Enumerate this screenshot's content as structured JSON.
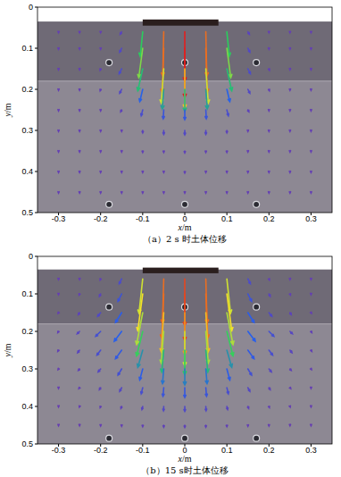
{
  "chart_data": [
    {
      "type": "vector_field",
      "title": "（a）2 s 时土体位移",
      "x_label": "x/m",
      "y_label": "y/m",
      "xlim": [
        -0.35,
        0.35
      ],
      "ylim": [
        0,
        0.5
      ],
      "xticks": [
        -0.3,
        -0.2,
        -0.1,
        0,
        0.1,
        0.2,
        0.3
      ],
      "yticks": [
        0,
        0.1,
        0.2,
        0.3,
        0.4,
        0.5
      ],
      "x": [
        -0.3,
        -0.25,
        -0.2,
        -0.15,
        -0.1,
        -0.05,
        0,
        0.05,
        0.1,
        0.15,
        0.2,
        0.25,
        0.3
      ],
      "y": [
        0.06,
        0.1,
        0.15,
        0.2,
        0.25,
        0.3,
        0.35,
        0.4,
        0.45
      ],
      "u": [
        [
          0,
          0,
          0,
          -0.3,
          -0.5,
          -0.2,
          0,
          0.2,
          0.5,
          0.3,
          0,
          0,
          0
        ],
        [
          0,
          0,
          0,
          -0.4,
          -0.8,
          -0.3,
          0,
          0.3,
          0.8,
          0.4,
          0,
          0,
          0
        ],
        [
          0,
          0,
          -0.1,
          -0.5,
          -1,
          -0.5,
          0,
          0.5,
          1,
          0.5,
          0.1,
          0,
          0
        ],
        [
          0,
          0,
          -0.1,
          -0.4,
          -0.6,
          -0.3,
          0,
          0.3,
          0.6,
          0.4,
          0.1,
          0,
          0
        ],
        [
          0,
          0,
          0,
          -0.2,
          -0.3,
          -0.1,
          0,
          0.1,
          0.3,
          0.2,
          0,
          0,
          0
        ],
        [
          0,
          0,
          0,
          0,
          0,
          0,
          0,
          0,
          0,
          0,
          0,
          0,
          0
        ],
        [
          0,
          0,
          0,
          0,
          0,
          0,
          0,
          0,
          0,
          0,
          0,
          0,
          0
        ],
        [
          0,
          0,
          0,
          0,
          0,
          0,
          0,
          0,
          0,
          0,
          0,
          0,
          0
        ],
        [
          0,
          0,
          0,
          0,
          0,
          0,
          0,
          0,
          0,
          0,
          0,
          0,
          0
        ]
      ],
      "v": [
        [
          0.2,
          0.2,
          0.2,
          0.5,
          5,
          9,
          10,
          9,
          5,
          0.5,
          0.2,
          0.2,
          0.2
        ],
        [
          0.2,
          0.2,
          0.2,
          0.8,
          6,
          9,
          10,
          9,
          6,
          0.8,
          0.2,
          0.2,
          0.2
        ],
        [
          0.2,
          0.2,
          0.3,
          1,
          4.5,
          7,
          8,
          7,
          4.5,
          1,
          0.3,
          0.2,
          0.2
        ],
        [
          0.2,
          0.2,
          0.3,
          0.8,
          2.5,
          4,
          4.5,
          4,
          2.5,
          0.8,
          0.3,
          0.2,
          0.2
        ],
        [
          0.2,
          0.2,
          0.2,
          0.4,
          1.2,
          1.8,
          2,
          1.8,
          1.2,
          0.4,
          0.2,
          0.2,
          0.2
        ],
        [
          0.2,
          0.2,
          0.2,
          0.2,
          0.5,
          0.8,
          0.9,
          0.8,
          0.5,
          0.2,
          0.2,
          0.2,
          0.2
        ],
        [
          0.2,
          0.2,
          0.2,
          0.2,
          0.3,
          0.3,
          0.4,
          0.3,
          0.3,
          0.2,
          0.2,
          0.2,
          0.2
        ],
        [
          0.2,
          0.2,
          0.2,
          0.2,
          0.2,
          0.2,
          0.3,
          0.2,
          0.2,
          0.2,
          0.2,
          0.2,
          0.2
        ],
        [
          0.2,
          0.2,
          0.2,
          0.2,
          0.2,
          0.2,
          0.2,
          0.2,
          0.2,
          0.2,
          0.2,
          0.2,
          0.2
        ]
      ],
      "clim": [
        0,
        10
      ],
      "soil_surface": 0.035,
      "layer_boundary": 0.18,
      "footing": {
        "x": [
          -0.1,
          0.08
        ],
        "y": [
          0.03,
          0.045
        ]
      },
      "sensors": [
        [
          -0.18,
          0.135
        ],
        [
          0,
          0.135
        ],
        [
          0.17,
          0.135
        ],
        [
          -0.18,
          0.48
        ],
        [
          0,
          0.48
        ],
        [
          0.17,
          0.48
        ]
      ]
    },
    {
      "type": "vector_field",
      "title": "（b）15 s时土体位移",
      "x_label": "x/m",
      "y_label": "y/m",
      "xlim": [
        -0.35,
        0.35
      ],
      "ylim": [
        0,
        0.5
      ],
      "xticks": [
        -0.3,
        -0.2,
        -0.1,
        0,
        0.1,
        0.2,
        0.3
      ],
      "yticks": [
        0,
        0.1,
        0.2,
        0.3,
        0.4,
        0.5
      ],
      "x": [
        -0.3,
        -0.25,
        -0.2,
        -0.15,
        -0.1,
        -0.05,
        0,
        0.05,
        0.1,
        0.15,
        0.2,
        0.25,
        0.3
      ],
      "y": [
        0.06,
        0.1,
        0.15,
        0.2,
        0.25,
        0.3,
        0.35,
        0.4,
        0.45
      ],
      "u": [
        [
          0,
          0,
          -0.2,
          -1,
          -1.5,
          -0.5,
          0,
          0.5,
          1.5,
          1,
          0.2,
          0,
          0
        ],
        [
          0,
          -0.2,
          -0.5,
          -1.5,
          -2,
          -0.8,
          0,
          0.8,
          2,
          1.5,
          0.5,
          0.2,
          0
        ],
        [
          -0.2,
          -0.5,
          -1.2,
          -2.5,
          -2.5,
          -1,
          0,
          1,
          2.5,
          2.5,
          1.2,
          0.5,
          0.2
        ],
        [
          -0.3,
          -1,
          -2,
          -3,
          -2.5,
          -1,
          0,
          1,
          2.5,
          3,
          2,
          1,
          0.3
        ],
        [
          -0.3,
          -0.8,
          -1.5,
          -2.5,
          -2,
          -0.8,
          0,
          0.8,
          2,
          2.5,
          1.5,
          0.8,
          0.3
        ],
        [
          -0.2,
          -0.5,
          -1,
          -1.5,
          -1.2,
          -0.5,
          0,
          0.5,
          1.2,
          1.5,
          1,
          0.5,
          0.2
        ],
        [
          0,
          -0.3,
          -0.5,
          -0.8,
          -0.6,
          -0.3,
          0,
          0.3,
          0.6,
          0.8,
          0.5,
          0.3,
          0
        ],
        [
          0,
          -0.1,
          -0.2,
          -0.3,
          -0.3,
          -0.1,
          0,
          0.1,
          0.3,
          0.3,
          0.2,
          0.1,
          0
        ],
        [
          0,
          0,
          0,
          0,
          0,
          0,
          0,
          0,
          0,
          0,
          0,
          0,
          0
        ]
      ],
      "v": [
        [
          0.3,
          0.3,
          0.5,
          2,
          14,
          18,
          19,
          18,
          14,
          2,
          0.5,
          0.3,
          0.3
        ],
        [
          0.3,
          0.5,
          1,
          3,
          15,
          18,
          19,
          18,
          15,
          3,
          1,
          0.5,
          0.3
        ],
        [
          0.3,
          0.8,
          1.5,
          4,
          13,
          16,
          17,
          16,
          13,
          4,
          1.5,
          0.8,
          0.3
        ],
        [
          0.5,
          1,
          2,
          4,
          10,
          13,
          14,
          13,
          10,
          4,
          2,
          1,
          0.5
        ],
        [
          0.5,
          1,
          2,
          3.5,
          7,
          9,
          10,
          9,
          7,
          3.5,
          2,
          1,
          0.5
        ],
        [
          0.3,
          0.6,
          1.2,
          2.5,
          4.5,
          6,
          6.5,
          6,
          4.5,
          2.5,
          1.2,
          0.6,
          0.3
        ],
        [
          0.3,
          0.4,
          0.8,
          1.5,
          2.5,
          3.5,
          4,
          3.5,
          2.5,
          1.5,
          0.8,
          0.4,
          0.3
        ],
        [
          0.2,
          0.3,
          0.5,
          0.8,
          1.3,
          1.8,
          2,
          1.8,
          1.3,
          0.8,
          0.5,
          0.3,
          0.2
        ],
        [
          0.2,
          0.2,
          0.3,
          0.4,
          0.6,
          0.8,
          0.9,
          0.8,
          0.6,
          0.4,
          0.3,
          0.2,
          0.2
        ]
      ],
      "clim": [
        0,
        20
      ],
      "soil_surface": 0.035,
      "layer_boundary": 0.18,
      "footing": {
        "x": [
          -0.1,
          0.08
        ],
        "y": [
          0.03,
          0.045
        ]
      },
      "sensors": [
        [
          -0.18,
          0.135
        ],
        [
          0,
          0.135
        ],
        [
          0.17,
          0.135
        ],
        [
          -0.18,
          0.485
        ],
        [
          0,
          0.485
        ],
        [
          0.17,
          0.485
        ]
      ]
    }
  ]
}
